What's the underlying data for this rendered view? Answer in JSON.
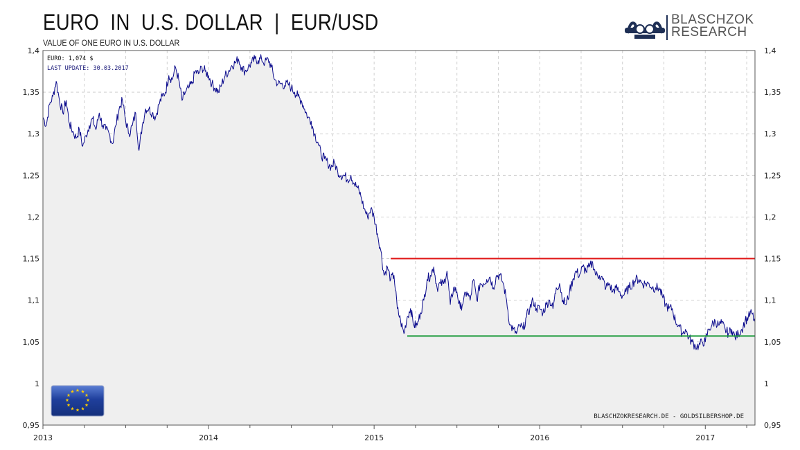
{
  "header": {
    "title": "EURO  IN  U.S. DOLLAR  |  EUR/USD",
    "subtitle": "VALUE OF ONE EURO IN U.S. DOLLAR"
  },
  "logo": {
    "line1": "BLASCHZOK",
    "line2": "RESEARCH"
  },
  "info": {
    "current": "EURO: 1,074 $",
    "last_update": "LAST UPDATE: 30.03.2017"
  },
  "credit": "BLASCHZOKRESEARCH.DE  -  GOLDSILBERSHOP.DE",
  "colors": {
    "line": "#0a0a8c",
    "resistance": "#e01515",
    "support": "#1a9a3a",
    "fill": "#efefef",
    "grid": "#cfcfcf"
  },
  "chart_data": {
    "type": "line",
    "x_tick_labels": [
      "2013",
      "2014",
      "2015",
      "2016",
      "2017"
    ],
    "y_tick_labels": [
      "1,4",
      "1,35",
      "1,3",
      "1,25",
      "1,2",
      "1,15",
      "1,1",
      "1,05",
      "1",
      "0,95"
    ],
    "xlim": [
      2013.0,
      2017.3
    ],
    "ylim": [
      0.95,
      1.4
    ],
    "grid": true,
    "series": [
      {
        "values": [
          [
            2013.0,
            1.32
          ],
          [
            2013.02,
            1.31
          ],
          [
            2013.04,
            1.335
          ],
          [
            2013.06,
            1.345
          ],
          [
            2013.08,
            1.363
          ],
          [
            2013.1,
            1.34
          ],
          [
            2013.12,
            1.325
          ],
          [
            2013.14,
            1.34
          ],
          [
            2013.16,
            1.312
          ],
          [
            2013.18,
            1.303
          ],
          [
            2013.2,
            1.295
          ],
          [
            2013.22,
            1.305
          ],
          [
            2013.24,
            1.285
          ],
          [
            2013.26,
            1.298
          ],
          [
            2013.28,
            1.31
          ],
          [
            2013.3,
            1.318
          ],
          [
            2013.32,
            1.305
          ],
          [
            2013.34,
            1.325
          ],
          [
            2013.36,
            1.31
          ],
          [
            2013.38,
            1.305
          ],
          [
            2013.4,
            1.3
          ],
          [
            2013.42,
            1.288
          ],
          [
            2013.44,
            1.31
          ],
          [
            2013.46,
            1.33
          ],
          [
            2013.48,
            1.34
          ],
          [
            2013.5,
            1.315
          ],
          [
            2013.52,
            1.3
          ],
          [
            2013.54,
            1.31
          ],
          [
            2013.56,
            1.325
          ],
          [
            2013.58,
            1.28
          ],
          [
            2013.6,
            1.31
          ],
          [
            2013.62,
            1.33
          ],
          [
            2013.64,
            1.33
          ],
          [
            2013.66,
            1.325
          ],
          [
            2013.68,
            1.32
          ],
          [
            2013.7,
            1.335
          ],
          [
            2013.72,
            1.345
          ],
          [
            2013.74,
            1.35
          ],
          [
            2013.76,
            1.37
          ],
          [
            2013.78,
            1.365
          ],
          [
            2013.8,
            1.38
          ],
          [
            2013.82,
            1.365
          ],
          [
            2013.84,
            1.34
          ],
          [
            2013.86,
            1.35
          ],
          [
            2013.88,
            1.355
          ],
          [
            2013.9,
            1.36
          ],
          [
            2013.92,
            1.375
          ],
          [
            2013.94,
            1.372
          ],
          [
            2013.96,
            1.38
          ],
          [
            2013.98,
            1.375
          ],
          [
            2014.0,
            1.37
          ],
          [
            2014.02,
            1.36
          ],
          [
            2014.04,
            1.355
          ],
          [
            2014.06,
            1.35
          ],
          [
            2014.08,
            1.36
          ],
          [
            2014.1,
            1.37
          ],
          [
            2014.12,
            1.375
          ],
          [
            2014.14,
            1.382
          ],
          [
            2014.16,
            1.385
          ],
          [
            2014.18,
            1.39
          ],
          [
            2014.2,
            1.38
          ],
          [
            2014.22,
            1.375
          ],
          [
            2014.24,
            1.38
          ],
          [
            2014.26,
            1.385
          ],
          [
            2014.28,
            1.39
          ],
          [
            2014.3,
            1.388
          ],
          [
            2014.32,
            1.39
          ],
          [
            2014.34,
            1.385
          ],
          [
            2014.36,
            1.39
          ],
          [
            2014.38,
            1.38
          ],
          [
            2014.4,
            1.365
          ],
          [
            2014.42,
            1.36
          ],
          [
            2014.44,
            1.36
          ],
          [
            2014.46,
            1.358
          ],
          [
            2014.48,
            1.36
          ],
          [
            2014.5,
            1.355
          ],
          [
            2014.52,
            1.35
          ],
          [
            2014.54,
            1.345
          ],
          [
            2014.56,
            1.34
          ],
          [
            2014.58,
            1.33
          ],
          [
            2014.6,
            1.32
          ],
          [
            2014.62,
            1.315
          ],
          [
            2014.64,
            1.3
          ],
          [
            2014.66,
            1.29
          ],
          [
            2014.68,
            1.275
          ],
          [
            2014.7,
            1.27
          ],
          [
            2014.72,
            1.265
          ],
          [
            2014.74,
            1.26
          ],
          [
            2014.76,
            1.265
          ],
          [
            2014.78,
            1.255
          ],
          [
            2014.8,
            1.25
          ],
          [
            2014.82,
            1.25
          ],
          [
            2014.84,
            1.245
          ],
          [
            2014.86,
            1.25
          ],
          [
            2014.88,
            1.24
          ],
          [
            2014.9,
            1.235
          ],
          [
            2014.92,
            1.225
          ],
          [
            2014.94,
            1.21
          ],
          [
            2014.96,
            1.2
          ],
          [
            2014.98,
            1.21
          ],
          [
            2015.0,
            1.2
          ],
          [
            2015.02,
            1.18
          ],
          [
            2015.04,
            1.16
          ],
          [
            2015.06,
            1.13
          ],
          [
            2015.08,
            1.14
          ],
          [
            2015.1,
            1.125
          ],
          [
            2015.12,
            1.13
          ],
          [
            2015.14,
            1.09
          ],
          [
            2015.16,
            1.075
          ],
          [
            2015.18,
            1.06
          ],
          [
            2015.2,
            1.08
          ],
          [
            2015.22,
            1.09
          ],
          [
            2015.24,
            1.07
          ],
          [
            2015.26,
            1.07
          ],
          [
            2015.28,
            1.085
          ],
          [
            2015.3,
            1.1
          ],
          [
            2015.32,
            1.125
          ],
          [
            2015.34,
            1.13
          ],
          [
            2015.36,
            1.14
          ],
          [
            2015.38,
            1.115
          ],
          [
            2015.4,
            1.12
          ],
          [
            2015.42,
            1.12
          ],
          [
            2015.44,
            1.135
          ],
          [
            2015.46,
            1.095
          ],
          [
            2015.48,
            1.115
          ],
          [
            2015.5,
            1.11
          ],
          [
            2015.52,
            1.09
          ],
          [
            2015.54,
            1.1
          ],
          [
            2015.56,
            1.11
          ],
          [
            2015.58,
            1.1
          ],
          [
            2015.6,
            1.125
          ],
          [
            2015.62,
            1.1
          ],
          [
            2015.64,
            1.12
          ],
          [
            2015.66,
            1.12
          ],
          [
            2015.68,
            1.125
          ],
          [
            2015.7,
            1.128
          ],
          [
            2015.72,
            1.115
          ],
          [
            2015.74,
            1.13
          ],
          [
            2015.76,
            1.13
          ],
          [
            2015.78,
            1.12
          ],
          [
            2015.8,
            1.1
          ],
          [
            2015.82,
            1.07
          ],
          [
            2015.84,
            1.065
          ],
          [
            2015.86,
            1.06
          ],
          [
            2015.88,
            1.07
          ],
          [
            2015.9,
            1.065
          ],
          [
            2015.92,
            1.08
          ],
          [
            2015.94,
            1.09
          ],
          [
            2015.96,
            1.1
          ],
          [
            2015.98,
            1.09
          ],
          [
            2016.0,
            1.09
          ],
          [
            2016.02,
            1.085
          ],
          [
            2016.04,
            1.095
          ],
          [
            2016.06,
            1.1
          ],
          [
            2016.08,
            1.09
          ],
          [
            2016.1,
            1.115
          ],
          [
            2016.12,
            1.12
          ],
          [
            2016.14,
            1.1
          ],
          [
            2016.16,
            1.095
          ],
          [
            2016.18,
            1.11
          ],
          [
            2016.2,
            1.125
          ],
          [
            2016.22,
            1.135
          ],
          [
            2016.24,
            1.13
          ],
          [
            2016.26,
            1.14
          ],
          [
            2016.28,
            1.135
          ],
          [
            2016.3,
            1.14
          ],
          [
            2016.32,
            1.145
          ],
          [
            2016.34,
            1.13
          ],
          [
            2016.36,
            1.13
          ],
          [
            2016.38,
            1.125
          ],
          [
            2016.4,
            1.115
          ],
          [
            2016.42,
            1.12
          ],
          [
            2016.44,
            1.11
          ],
          [
            2016.46,
            1.115
          ],
          [
            2016.48,
            1.11
          ],
          [
            2016.5,
            1.105
          ],
          [
            2016.52,
            1.11
          ],
          [
            2016.54,
            1.115
          ],
          [
            2016.56,
            1.12
          ],
          [
            2016.58,
            1.125
          ],
          [
            2016.6,
            1.125
          ],
          [
            2016.62,
            1.12
          ],
          [
            2016.64,
            1.12
          ],
          [
            2016.66,
            1.12
          ],
          [
            2016.68,
            1.115
          ],
          [
            2016.7,
            1.115
          ],
          [
            2016.72,
            1.115
          ],
          [
            2016.74,
            1.105
          ],
          [
            2016.76,
            1.095
          ],
          [
            2016.78,
            1.09
          ],
          [
            2016.8,
            1.09
          ],
          [
            2016.82,
            1.075
          ],
          [
            2016.84,
            1.07
          ],
          [
            2016.86,
            1.06
          ],
          [
            2016.88,
            1.065
          ],
          [
            2016.9,
            1.055
          ],
          [
            2016.92,
            1.05
          ],
          [
            2016.94,
            1.045
          ],
          [
            2016.96,
            1.045
          ],
          [
            2016.98,
            1.05
          ],
          [
            2017.0,
            1.05
          ],
          [
            2017.02,
            1.065
          ],
          [
            2017.04,
            1.07
          ],
          [
            2017.06,
            1.075
          ],
          [
            2017.08,
            1.07
          ],
          [
            2017.1,
            1.072
          ],
          [
            2017.12,
            1.065
          ],
          [
            2017.14,
            1.06
          ],
          [
            2017.16,
            1.065
          ],
          [
            2017.18,
            1.055
          ],
          [
            2017.2,
            1.06
          ],
          [
            2017.22,
            1.065
          ],
          [
            2017.24,
            1.075
          ],
          [
            2017.26,
            1.08
          ],
          [
            2017.28,
            1.085
          ],
          [
            2017.3,
            1.074
          ]
        ]
      }
    ],
    "lines": [
      {
        "kind": "resistance",
        "y": 1.15,
        "x_start": 2015.1,
        "x_end": 2017.3
      },
      {
        "kind": "support",
        "y": 1.057,
        "x_start": 2015.2,
        "x_end": 2017.3
      }
    ]
  }
}
